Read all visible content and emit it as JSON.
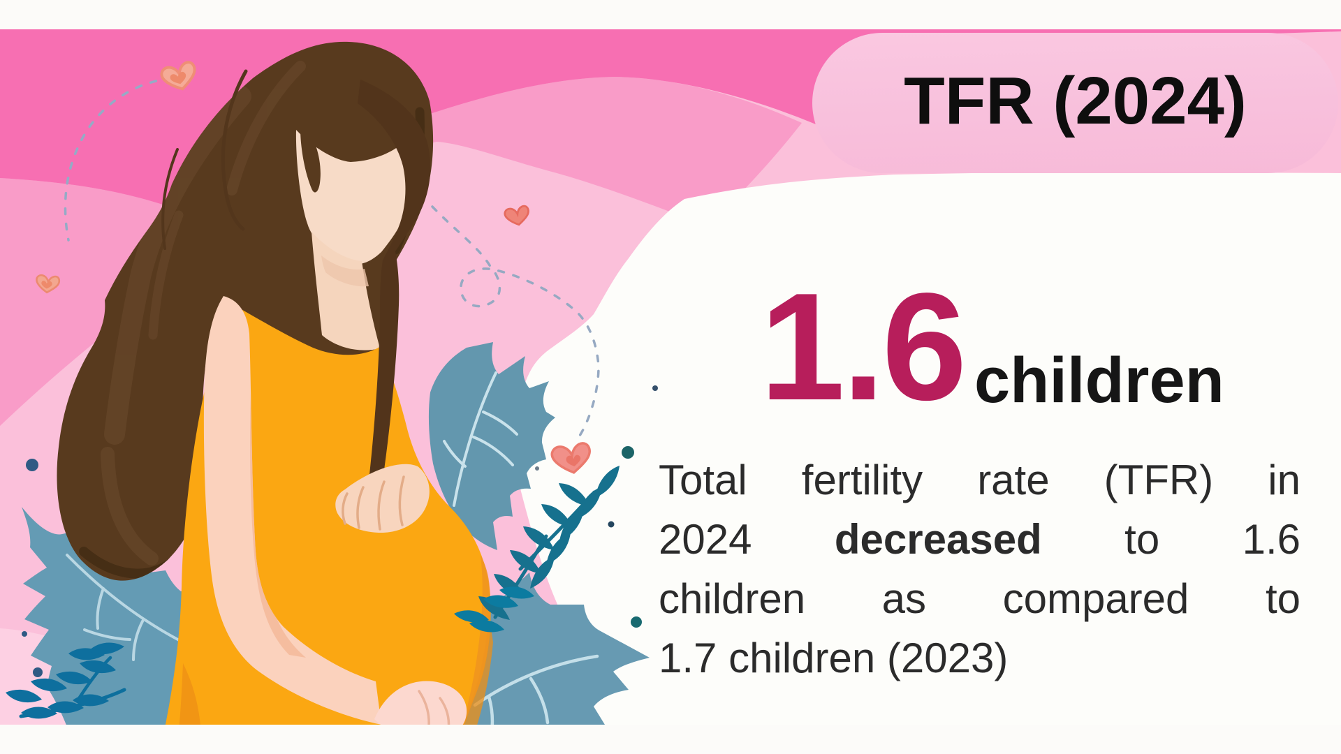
{
  "badge": {
    "label": "TFR (2024)"
  },
  "stat": {
    "value": "1.6",
    "unit": "children"
  },
  "body": {
    "lines": [
      "Total fertility rate (TFR) in",
      "2024 **decreased** to 1.6",
      "children as compared to",
      "1.7 children (2023)"
    ]
  },
  "colors": {
    "strip_white": "#fcfbf9",
    "badge_pink": "#f8c0dc",
    "accent_crimson": "#b71e5b",
    "title_black": "#0e0e0e",
    "body_black": "#2b2b2b",
    "hot_pink": "#f76fb2",
    "medium_pink": "#f99cc8",
    "light_pink": "#fbc0da",
    "pale_pink": "#fdd0e3",
    "panel_white": "#fdfdfa",
    "dress_orange": "#fba712",
    "hair_brown": "#583a1e",
    "skin_tone": "#f7dbc7",
    "leaf_blue_gray": "#6397ae",
    "leaf_teal": "#17798f",
    "heart_salmon": "#f19089",
    "dot_navy": "#2f5a84",
    "dot_teal": "#1c6467"
  },
  "illustration": {
    "description": "Pregnant woman with long brown hair in an orange dress, holding her belly, surrounded by leaves and hearts"
  }
}
